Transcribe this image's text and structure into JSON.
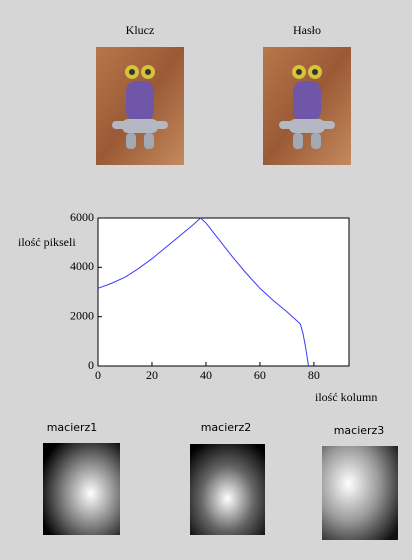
{
  "images": [
    {
      "label": "Klucz"
    },
    {
      "label": "Hasło"
    }
  ],
  "chart_data": {
    "type": "line",
    "x": [
      0,
      5,
      10,
      15,
      20,
      25,
      30,
      35,
      38,
      40,
      45,
      50,
      55,
      60,
      65,
      70,
      75,
      76,
      77,
      78
    ],
    "values": [
      3150,
      3350,
      3600,
      3950,
      4350,
      4800,
      5250,
      5700,
      6000,
      5800,
      5100,
      4400,
      3750,
      3150,
      2650,
      2200,
      1700,
      1300,
      700,
      0
    ],
    "color": "#3a3aff",
    "xlabel": "ilość kolumn",
    "ylabel": "ilość pikseli",
    "xlim": [
      0,
      93
    ],
    "ylim": [
      0,
      6000
    ],
    "xticks": [
      0,
      20,
      40,
      60,
      80
    ],
    "yticks": [
      0,
      2000,
      4000,
      6000
    ]
  },
  "matrices": [
    {
      "label": "macierz1"
    },
    {
      "label": "macierz2"
    },
    {
      "label": "macierz3"
    }
  ]
}
